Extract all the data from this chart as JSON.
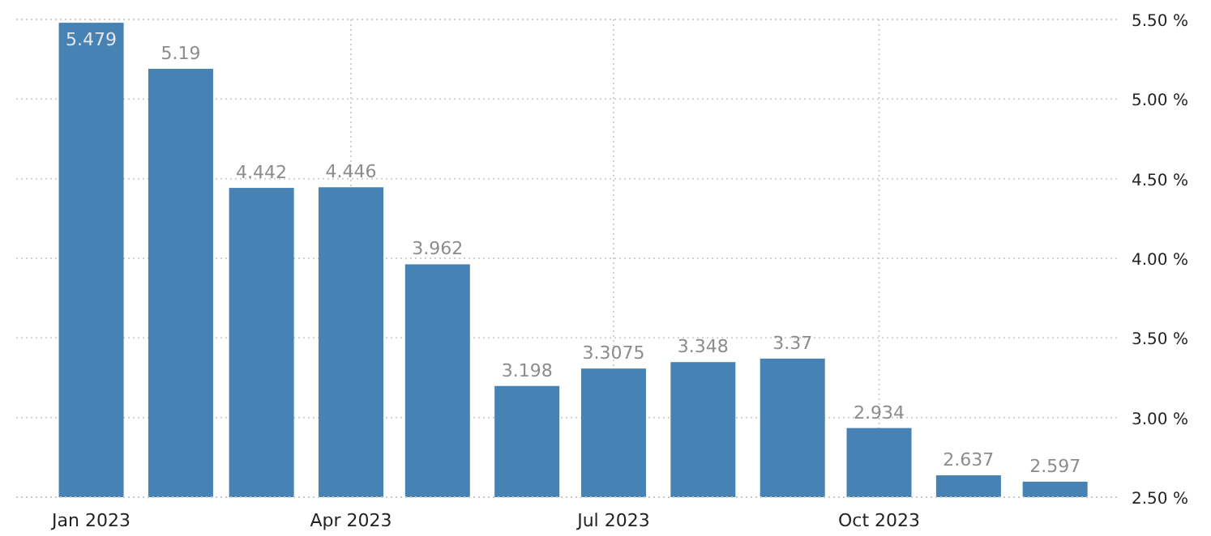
{
  "chart_data": {
    "type": "bar",
    "x": [
      "2023-01-01",
      "2023-02-01",
      "2023-03-01",
      "2023-04-01",
      "2023-05-01",
      "2023-06-01",
      "2023-07-01",
      "2023-08-01",
      "2023-09-01",
      "2023-10-01",
      "2023-11-01",
      "2023-12-01"
    ],
    "values": [
      5.479,
      5.19,
      4.442,
      4.446,
      3.962,
      3.198,
      3.3075,
      3.348,
      3.37,
      2.934,
      2.637,
      2.597
    ],
    "color": "#4682b4",
    "data_labels": true,
    "grid": true,
    "xlim": [
      "2022-12-06",
      "2023-12-23"
    ],
    "xticks": [
      {
        "value": "2023-01-01",
        "label": "Jan 2023"
      },
      {
        "value": "2023-04-01",
        "label": "Apr 2023"
      },
      {
        "value": "2023-07-01",
        "label": "Jul 2023"
      },
      {
        "value": "2023-10-01",
        "label": "Oct 2023"
      }
    ],
    "ylim": [
      2.5,
      5.5
    ],
    "yticks": [
      {
        "value": 2.5,
        "label": "2.50 %"
      },
      {
        "value": 3,
        "label": "3.00 %"
      },
      {
        "value": 3.5,
        "label": "3.50 %"
      },
      {
        "value": 4,
        "label": "4.00 %"
      },
      {
        "value": 4.5,
        "label": "4.50 %"
      },
      {
        "value": 5,
        "label": "5.00 %"
      },
      {
        "value": 5.5,
        "label": "5.50 %"
      }
    ]
  }
}
